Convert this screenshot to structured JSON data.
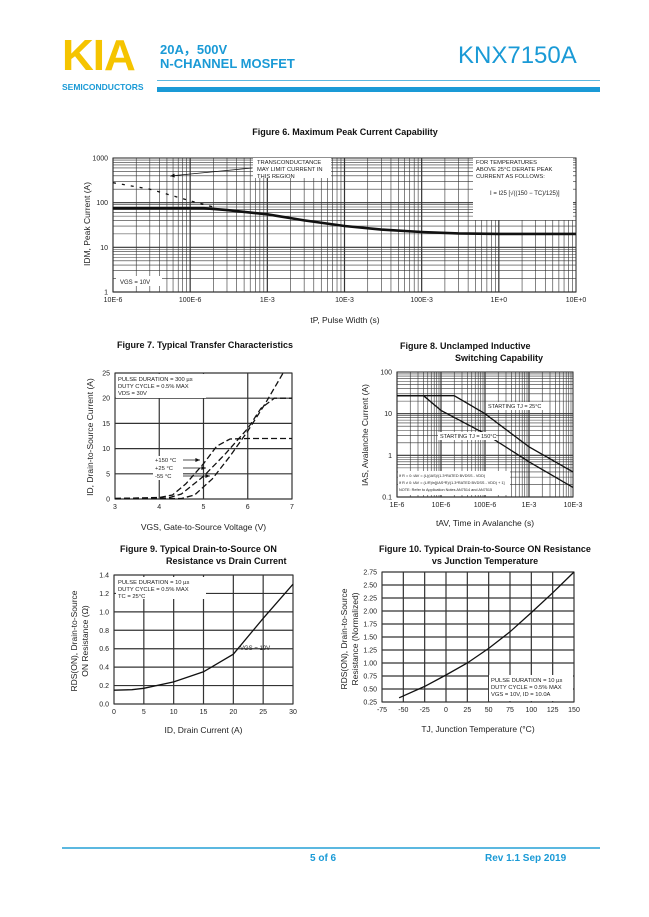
{
  "header": {
    "logo": "KIA",
    "logo_sub": "SEMICONDUCTORS",
    "rating": "20A，500V",
    "type": "N-CHANNEL MOSFET",
    "part_number": "KNX7150A"
  },
  "footer": {
    "page": "5 of 6",
    "revision": "Rev 1.1 Sep 2019"
  },
  "colors": {
    "brand_blue": "#1a9ad6",
    "logo_yellow": "#f5c400"
  },
  "chart_data": [
    {
      "type": "line",
      "title": "Figure 6. Maximum Peak Current Capability",
      "xlabel": "tP, Pulse Width (s)",
      "ylabel": "IDM, Peak Current (A)",
      "xscale": "log",
      "yscale": "log",
      "xlim": [
        1e-05,
        10
      ],
      "ylim": [
        1,
        1000
      ],
      "grid": true,
      "xticks": [
        {
          "v": 1e-05,
          "label": "10E-6"
        },
        {
          "v": 0.0001,
          "label": "100E-6"
        },
        {
          "v": 0.001,
          "label": "1E-3"
        },
        {
          "v": 0.01,
          "label": "10E-3"
        },
        {
          "v": 0.1,
          "label": "100E-3"
        },
        {
          "v": 1,
          "label": "1E+0"
        },
        {
          "v": 10,
          "label": "10E+0"
        }
      ],
      "yticks": [
        {
          "v": 1,
          "label": "1"
        },
        {
          "v": 10,
          "label": "10"
        },
        {
          "v": 100,
          "label": "100"
        },
        {
          "v": 1000,
          "label": "1000"
        }
      ],
      "series": [
        {
          "style": "solid",
          "points": [
            [
              1e-05,
              75
            ],
            [
              0.00015,
              75
            ],
            [
              0.0003,
              68
            ],
            [
              0.001,
              55
            ],
            [
              0.003,
              40
            ],
            [
              0.01,
              30
            ],
            [
              0.03,
              25
            ],
            [
              0.1,
              22
            ],
            [
              0.3,
              20.5
            ],
            [
              1,
              20
            ],
            [
              10,
              20
            ]
          ]
        },
        {
          "style": "dashed",
          "points": [
            [
              1e-05,
              280
            ],
            [
              3e-05,
              200
            ],
            [
              0.0001,
              110
            ],
            [
              0.0002,
              80
            ]
          ]
        }
      ],
      "annotations": {
        "transconductance": [
          "TRANSCONDUCTANCE",
          "MAY LIMIT CURRENT IN",
          "THIS REGION"
        ],
        "derate": [
          "FOR TEMPERATURES",
          "ABOVE 25°C DERATE PEAK",
          "CURRENT AS FOLLOWS:"
        ],
        "formula": "I = I25 [√((150 − TC)/125)]",
        "condition": "VGS = 10V"
      }
    },
    {
      "type": "line",
      "title": "Figure 7. Typical Transfer Characteristics",
      "xlabel": "VGS, Gate-to-Source Voltage (V)",
      "ylabel": "ID, Drain-to-Source Current (A)",
      "xlim": [
        3,
        7
      ],
      "ylim": [
        0,
        25
      ],
      "grid": true,
      "xticks": [
        {
          "v": 3,
          "label": "3"
        },
        {
          "v": 4,
          "label": "4"
        },
        {
          "v": 5,
          "label": "5"
        },
        {
          "v": 6,
          "label": "6"
        },
        {
          "v": 7,
          "label": "7"
        }
      ],
      "yticks": [
        {
          "v": 0,
          "label": "0"
        },
        {
          "v": 5,
          "label": "5"
        },
        {
          "v": 10,
          "label": "10"
        },
        {
          "v": 15,
          "label": "15"
        },
        {
          "v": 20,
          "label": "20"
        },
        {
          "v": 25,
          "label": "25"
        }
      ],
      "series": [
        {
          "name": "+150 °C",
          "style": "dashed",
          "points": [
            [
              3,
              0.1
            ],
            [
              4,
              0.3
            ],
            [
              4.3,
              0.8
            ],
            [
              4.6,
              3
            ],
            [
              5,
              7
            ],
            [
              5.3,
              10.5
            ],
            [
              5.6,
              11.9
            ],
            [
              6,
              12
            ],
            [
              7,
              12
            ]
          ]
        },
        {
          "name": "+25 °C",
          "style": "dashed",
          "points": [
            [
              3,
              0.1
            ],
            [
              4.2,
              0.2
            ],
            [
              4.5,
              1
            ],
            [
              5,
              4.5
            ],
            [
              5.5,
              9
            ],
            [
              6,
              14
            ],
            [
              6.3,
              18
            ],
            [
              6.6,
              20
            ],
            [
              7,
              20
            ]
          ]
        },
        {
          "name": "-55 °C",
          "style": "dashed",
          "points": [
            [
              3,
              0.1
            ],
            [
              4.5,
              0.1
            ],
            [
              4.8,
              0.8
            ],
            [
              5.2,
              4
            ],
            [
              5.6,
              8.5
            ],
            [
              6,
              13.5
            ],
            [
              6.4,
              19
            ],
            [
              6.8,
              25
            ]
          ]
        }
      ],
      "annotations": {
        "conditions": [
          "PULSE DURATION = 300 µs",
          "DUTY CYCLE = 0.5% MAX",
          "VDS = 30V"
        ]
      }
    },
    {
      "type": "line",
      "title": [
        "Figure 8.    Unclamped Inductive",
        "Switching Capability"
      ],
      "xlabel": "tAV, Time in Avalanche (s)",
      "ylabel": "IAS, Avalanche Current (A)",
      "xscale": "log",
      "yscale": "log",
      "xlim": [
        1e-06,
        0.01
      ],
      "ylim": [
        0.1,
        100
      ],
      "grid": true,
      "xticks": [
        {
          "v": 1e-06,
          "label": "1E-6"
        },
        {
          "v": 1e-05,
          "label": "10E-6"
        },
        {
          "v": 0.0001,
          "label": "100E-6"
        },
        {
          "v": 0.001,
          "label": "1E-3"
        },
        {
          "v": 0.01,
          "label": "10E-3"
        }
      ],
      "yticks": [
        {
          "v": 0.1,
          "label": "0.1"
        },
        {
          "v": 1,
          "label": "1"
        },
        {
          "v": 10,
          "label": "10"
        },
        {
          "v": 100,
          "label": "100"
        }
      ],
      "series": [
        {
          "name": "STARTING TJ = 25°C",
          "style": "solid",
          "points": [
            [
              1e-06,
              27
            ],
            [
              2e-05,
              27
            ],
            [
              0.0001,
              10
            ],
            [
              0.001,
              1.6
            ],
            [
              0.01,
              0.4
            ]
          ]
        },
        {
          "name": "STARTING TJ = 150°C",
          "style": "solid",
          "points": [
            [
              1e-06,
              27
            ],
            [
              4e-06,
              27
            ],
            [
              1e-05,
              12
            ],
            [
              0.0001,
              3.3
            ],
            [
              0.001,
              0.7
            ],
            [
              0.01,
              0.17
            ]
          ]
        }
      ],
      "annotations": {
        "notes": [
          "If R = 0: tAV = (L)(IAS)/(1.3*RATED BVDSS - VDD)",
          "If R ≠ 0: tAV = (L/R)ln[(IAS*R)/(1.3*RATED BVDSS - VDD) + 1]",
          "NOTE: Refer to Application Notes AN7514 and AN7515"
        ]
      }
    },
    {
      "type": "line",
      "title": [
        "Figure 9.    Typical Drain-to-Source ON",
        "Resistance vs Drain Current"
      ],
      "xlabel": "ID, Drain Current (A)",
      "ylabel": [
        "RDS(ON), Drain-to-Source",
        "ON Resistance (Ω)"
      ],
      "xlim": [
        0,
        30
      ],
      "ylim": [
        0,
        1.4
      ],
      "grid": true,
      "xticks": [
        {
          "v": 0,
          "label": "0"
        },
        {
          "v": 5,
          "label": "5"
        },
        {
          "v": 10,
          "label": "10"
        },
        {
          "v": 15,
          "label": "15"
        },
        {
          "v": 20,
          "label": "20"
        },
        {
          "v": 25,
          "label": "25"
        },
        {
          "v": 30,
          "label": "30"
        }
      ],
      "yticks": [
        {
          "v": 0,
          "label": "0.0"
        },
        {
          "v": 0.2,
          "label": "0.2"
        },
        {
          "v": 0.4,
          "label": "0.4"
        },
        {
          "v": 0.6,
          "label": "0.6"
        },
        {
          "v": 0.8,
          "label": "0.8"
        },
        {
          "v": 1.0,
          "label": "1.0"
        },
        {
          "v": 1.2,
          "label": "1.2"
        },
        {
          "v": 1.4,
          "label": "1.4"
        }
      ],
      "series": [
        {
          "name": "VGS = 10V",
          "style": "solid",
          "points": [
            [
              0,
              0.15
            ],
            [
              3,
              0.155
            ],
            [
              5,
              0.17
            ],
            [
              10,
              0.24
            ],
            [
              15,
              0.35
            ],
            [
              20,
              0.54
            ],
            [
              25,
              0.93
            ],
            [
              30,
              1.3
            ]
          ]
        }
      ],
      "annotations": {
        "conditions": [
          "PULSE DURATION = 10 µs",
          "DUTY CYCLE = 0.5% MAX",
          "TC = 25°C"
        ]
      }
    },
    {
      "type": "line",
      "title": [
        "Figure 10.  Typical Drain-to-Source ON Resistance",
        "vs Junction Temperature"
      ],
      "xlabel": "TJ, Junction Temperature (°C)",
      "ylabel": [
        "RDS(ON), Drain-to-Source",
        "Resistance (Normalized)"
      ],
      "xlim": [
        -75,
        150
      ],
      "ylim": [
        0.25,
        2.75
      ],
      "grid": true,
      "xticks": [
        {
          "v": -75,
          "label": "-75"
        },
        {
          "v": -50,
          "label": "-50"
        },
        {
          "v": -25,
          "label": "-25"
        },
        {
          "v": 0,
          "label": "0"
        },
        {
          "v": 25,
          "label": "25"
        },
        {
          "v": 50,
          "label": "50"
        },
        {
          "v": 75,
          "label": "75"
        },
        {
          "v": 100,
          "label": "100"
        },
        {
          "v": 125,
          "label": "125"
        },
        {
          "v": 150,
          "label": "150"
        }
      ],
      "yticks": [
        {
          "v": 0.25,
          "label": "0.25"
        },
        {
          "v": 0.5,
          "label": "0.50"
        },
        {
          "v": 0.75,
          "label": "0.75"
        },
        {
          "v": 1.0,
          "label": "1.00"
        },
        {
          "v": 1.25,
          "label": "1.25"
        },
        {
          "v": 1.5,
          "label": "1.50"
        },
        {
          "v": 1.75,
          "label": "1.75"
        },
        {
          "v": 2.0,
          "label": "2.00"
        },
        {
          "v": 2.25,
          "label": "2.25"
        },
        {
          "v": 2.5,
          "label": "2.50"
        },
        {
          "v": 2.75,
          "label": "2.75"
        }
      ],
      "series": [
        {
          "style": "solid",
          "points": [
            [
              -55,
              0.33
            ],
            [
              -25,
              0.55
            ],
            [
              0,
              0.77
            ],
            [
              25,
              1.0
            ],
            [
              50,
              1.28
            ],
            [
              75,
              1.6
            ],
            [
              100,
              1.97
            ],
            [
              125,
              2.35
            ],
            [
              150,
              2.75
            ]
          ]
        }
      ],
      "annotations": {
        "conditions": [
          "PULSE DURATION = 10 µs",
          "DUTY CYCLE = 0.5% MAX",
          "VGS = 10V, ID = 10.0A"
        ]
      }
    }
  ]
}
